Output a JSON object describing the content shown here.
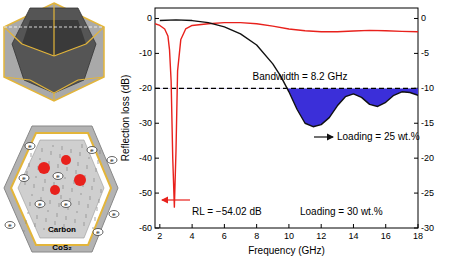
{
  "chart_data": {
    "type": "line",
    "x_label": "Frequency (GHz)",
    "y_label": "Reflection loss (dB)",
    "xlim": [
      1.7,
      18
    ],
    "xticks": [
      2,
      4,
      6,
      8,
      10,
      12,
      14,
      16,
      18
    ],
    "ylim": [
      -60,
      3
    ],
    "yticks": [
      0,
      -10,
      -20,
      -30,
      -40,
      -50,
      -60
    ],
    "y2lim": [
      -30,
      1.5
    ],
    "y2ticks": [
      0,
      -5,
      -10,
      -15,
      -20,
      -25,
      -30
    ],
    "threshold": {
      "value": -10,
      "axis": "y2"
    },
    "series": [
      {
        "name": "Loading = 30 wt.%",
        "color": "#e8211c",
        "x": [
          1.7,
          2.0,
          2.3,
          2.5,
          2.6,
          2.7,
          2.8,
          2.9,
          3.0,
          3.1,
          3.3,
          3.6,
          4,
          5,
          6,
          7,
          8,
          9,
          10,
          11,
          12,
          13,
          14,
          15,
          16,
          17,
          18
        ],
        "values": [
          -1.5,
          -2,
          -3,
          -5,
          -9,
          -18,
          -40,
          -54.02,
          -38,
          -15,
          -6,
          -3,
          -2,
          -1.5,
          -1.2,
          -1.2,
          -1.5,
          -2.2,
          -3,
          -3.5,
          -3.8,
          -3.8,
          -3.6,
          -3.4,
          -3.5,
          -3.7,
          -3.8
        ]
      },
      {
        "name": "Loading = 25 wt.%",
        "color": "#111111",
        "axis": "y2",
        "x": [
          2,
          3,
          4,
          5,
          6,
          7,
          8,
          9,
          9.5,
          10,
          10.5,
          11,
          11.5,
          12,
          12.5,
          13,
          13.5,
          14,
          14.5,
          15,
          15.5,
          16,
          16.5,
          17,
          17.5,
          18
        ],
        "values": [
          -0.3,
          -0.2,
          -0.3,
          -0.6,
          -1.2,
          -2.2,
          -3.8,
          -6.5,
          -8.3,
          -10.5,
          -13,
          -15,
          -15.5,
          -15.2,
          -14.2,
          -12.5,
          -11.2,
          -10.8,
          -11.3,
          -12.3,
          -12.6,
          -12,
          -11,
          -10.5,
          -10.6,
          -11
        ]
      }
    ],
    "annotations": [
      "Bandwidth = 8.2 GHz",
      "Loading = 25 wt.%",
      "RL = −54.02 dB",
      "Loading = 30 wt.%"
    ]
  },
  "diagram": {
    "core": "Carbon",
    "shell": "CoS₂",
    "electron": "e"
  }
}
